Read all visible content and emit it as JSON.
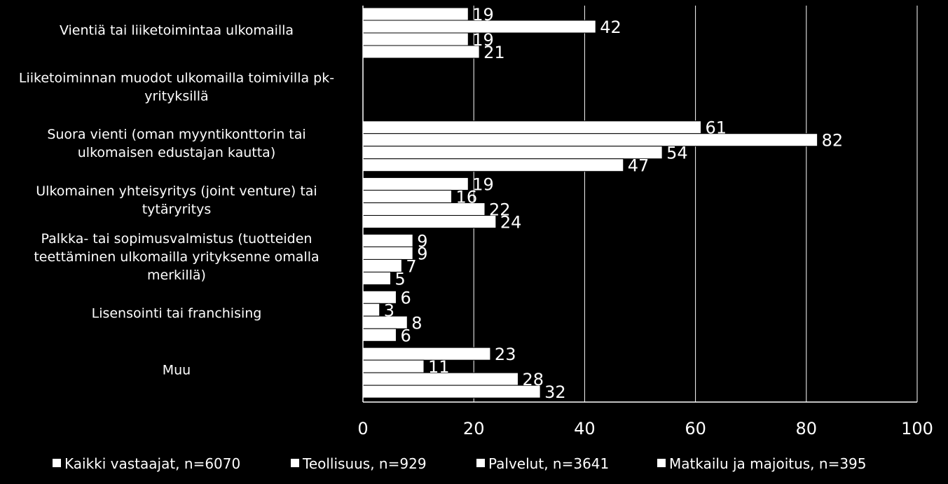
{
  "chart_data": {
    "type": "bar",
    "orientation": "horizontal",
    "title": "",
    "xlabel": "",
    "ylabel": "",
    "xlim": [
      0,
      100
    ],
    "x_ticks": [
      0,
      20,
      40,
      60,
      80,
      100
    ],
    "grid": true,
    "legend_position": "bottom",
    "categories": [
      [
        "Vientiä tai liiketoimintaa ulkomailla"
      ],
      [
        "Liiketoiminnan muodot ulkomailla toimivilla pk-",
        "yrityksillä"
      ],
      [
        "Suora vienti (oman myyntikonttorin tai",
        "ulkomaisen edustajan kautta)"
      ],
      [
        "Ulkomainen yhteisyritys (joint venture) tai",
        "tytäryritys"
      ],
      [
        "Palkka- tai sopimusvalmistus (tuotteiden",
        "teettäminen ulkomailla yrityksenne omalla",
        "merkillä)"
      ],
      [
        "Lisensointi tai franchising"
      ],
      [
        "Muu"
      ]
    ],
    "series": [
      {
        "name": "Kaikki vastaajat, n=6070",
        "color": "#ffffff",
        "values": [
          19,
          null,
          61,
          19,
          9,
          6,
          23
        ]
      },
      {
        "name": "Teollisuus, n=929",
        "color": "#ffffff",
        "values": [
          42,
          null,
          82,
          16,
          9,
          3,
          11
        ]
      },
      {
        "name": "Palvelut, n=3641",
        "color": "#ffffff",
        "values": [
          19,
          null,
          54,
          22,
          7,
          8,
          28
        ]
      },
      {
        "name": "Matkailu ja majoitus, n=395",
        "color": "#ffffff",
        "values": [
          21,
          null,
          47,
          24,
          5,
          6,
          32
        ]
      }
    ]
  },
  "colors": {
    "background": "#000000",
    "bar": "#ffffff",
    "text": "#ffffff",
    "gridline": "#ffffff"
  }
}
